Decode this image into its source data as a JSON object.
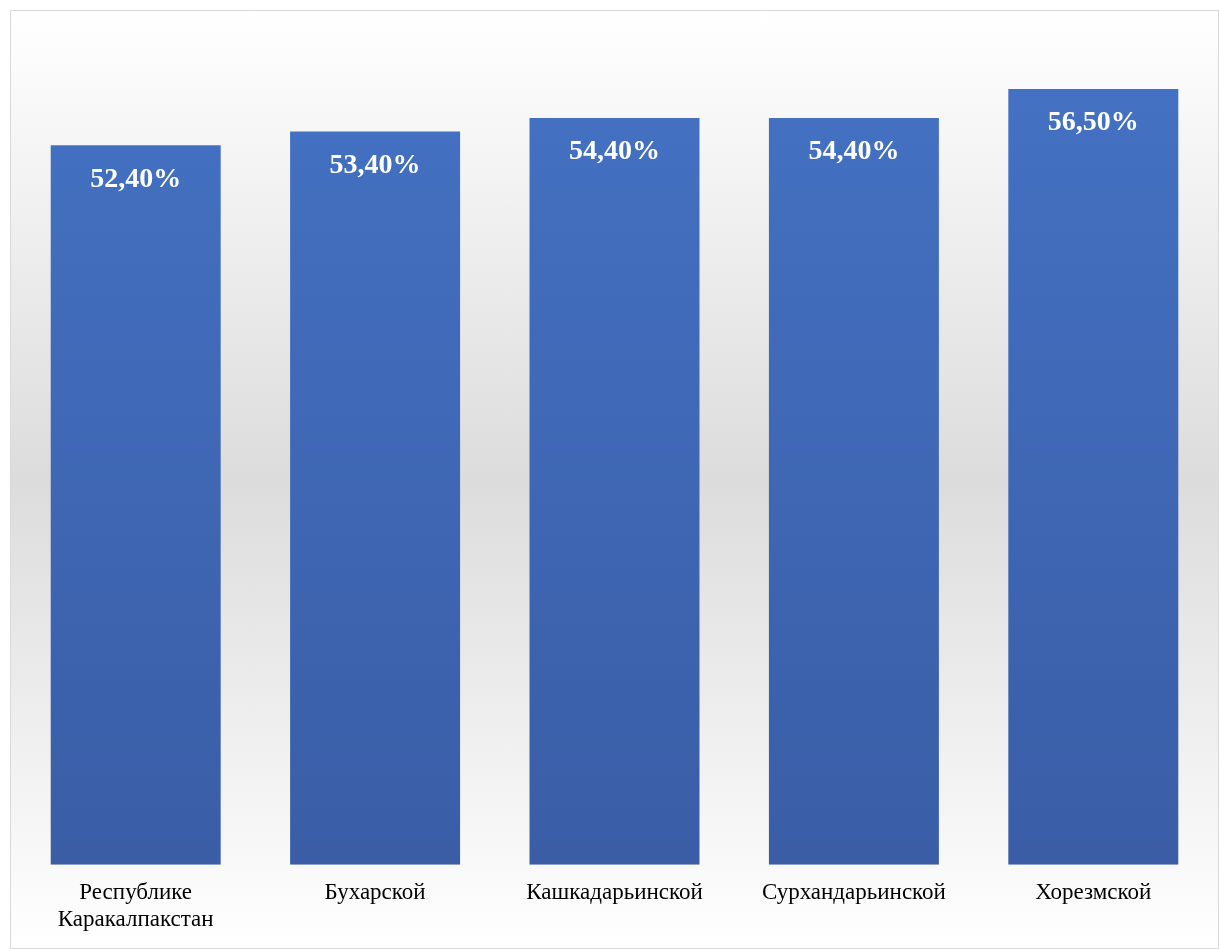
{
  "chart_data": {
    "type": "bar",
    "categories": [
      "Республике Каракалпакстан",
      "Бухарской",
      "Кашкадарьинской",
      "Сурхандарьинской",
      "Хорезмской"
    ],
    "values": [
      52.4,
      53.4,
      54.4,
      54.4,
      56.5
    ],
    "value_labels": [
      "52,40%",
      "53,40%",
      "54,40%",
      "54,40%",
      "56,50%"
    ],
    "color": "#4472c4",
    "tick_labels": "x",
    "grid": false,
    "legend": false
  }
}
